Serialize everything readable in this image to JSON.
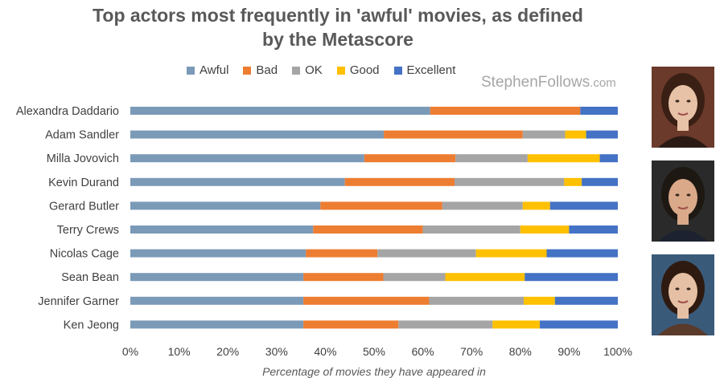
{
  "chart_data": {
    "type": "bar",
    "orientation": "horizontal",
    "stacked": true,
    "title": "Top actors most frequently in 'awful' movies, as defined by the Metascore",
    "title_lines": [
      "Top actors most frequently in 'awful' movies, as defined",
      "by the Metascore"
    ],
    "xlabel": "Percentage of movies they have appeared in",
    "ylabel": "",
    "xlim": [
      0,
      100
    ],
    "x_ticks": [
      "0%",
      "10%",
      "20%",
      "30%",
      "40%",
      "50%",
      "60%",
      "70%",
      "80%",
      "90%",
      "100%"
    ],
    "legend_position": "top",
    "grid": false,
    "categories": [
      "Alexandra Daddario",
      "Adam Sandler",
      "Milla Jovovich",
      "Kevin Durand",
      "Gerard Butler",
      "Terry Crews",
      "Nicolas Cage",
      "Sean Bean",
      "Jennifer Garner",
      "Ken Jeong"
    ],
    "series": [
      {
        "name": "Awful",
        "color": "#7b9ab8",
        "values": [
          61.5,
          52,
          48,
          44,
          39,
          37.5,
          36,
          35.5,
          35.5,
          35.5
        ]
      },
      {
        "name": "Bad",
        "color": "#ed7d31",
        "values": [
          30.8,
          28.5,
          18.7,
          22.5,
          25,
          22.5,
          14.7,
          16.4,
          25.8,
          19.5
        ]
      },
      {
        "name": "OK",
        "color": "#a5a5a5",
        "values": [
          0,
          8.7,
          14.8,
          22.5,
          16.5,
          20,
          20.2,
          12.7,
          19.4,
          19.3
        ]
      },
      {
        "name": "Good",
        "color": "#ffc000",
        "values": [
          0,
          4.3,
          14.8,
          3.6,
          5.6,
          10,
          14.5,
          16.3,
          6.4,
          9.7
        ]
      },
      {
        "name": "Excellent",
        "color": "#4472c4",
        "values": [
          7.7,
          6.5,
          3.7,
          7.4,
          13.9,
          10,
          14.6,
          19.1,
          12.9,
          16
        ]
      }
    ]
  },
  "watermark": {
    "name": "StephenFollows",
    "domain": ".com"
  },
  "photos": [
    {
      "name": "Alexandra Daddario",
      "bg": "#6b3a2a",
      "hair": "#3a2014",
      "skin": "#e8c2a6",
      "shirt": "#2b1a14"
    },
    {
      "name": "Adam Sandler",
      "bg": "#2a2a2a",
      "hair": "#1e1812",
      "skin": "#d9a98a",
      "shirt": "#1c2230"
    },
    {
      "name": "Milla Jovovich",
      "bg": "#3a5a7a",
      "hair": "#2e1a10",
      "skin": "#e6c0a4",
      "shirt": "#5a3a2a"
    }
  ]
}
